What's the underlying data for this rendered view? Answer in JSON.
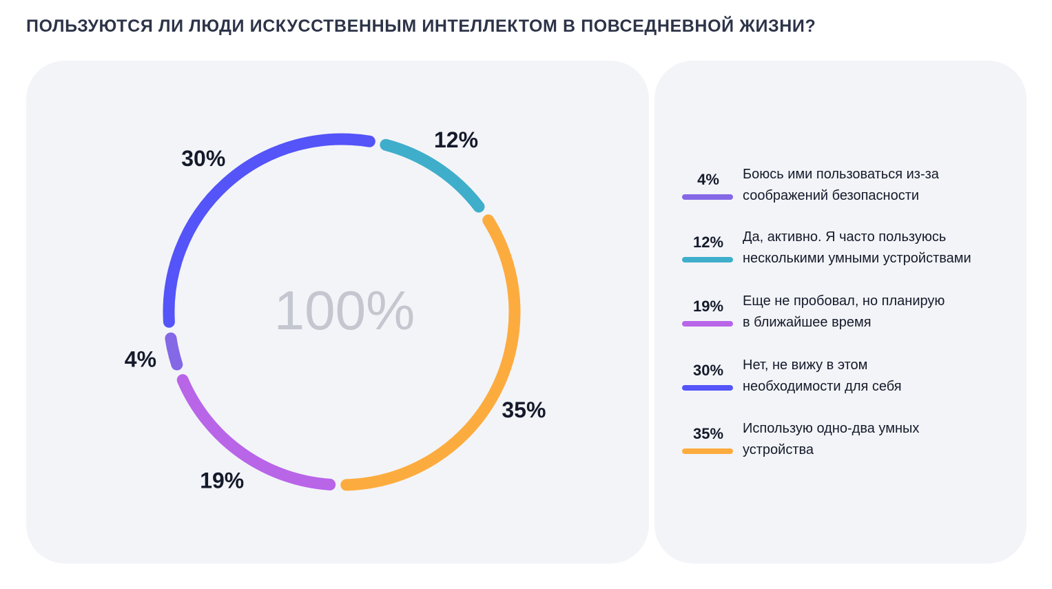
{
  "title": "ПОЛЬЗУЮТСЯ ЛИ ЛЮДИ ИСКУССТВЕННЫМ ИНТЕЛЛЕКТОМ В ПОВСЕДНЕВНОЙ ЖИЗНИ?",
  "chart_data": {
    "type": "pie",
    "variant": "donut",
    "center_label": "100%",
    "legend_position": "right",
    "slices": [
      {
        "label": "Да, активно. Я часто пользуюсь несколькими умными устройствами",
        "value": 12,
        "display": "12%",
        "color": "#3faecb"
      },
      {
        "label": "Использую одно-два умных устройства",
        "value": 35,
        "display": "35%",
        "color": "#fcac3e"
      },
      {
        "label": "Еще не пробовал, но планирую в ближайшее время",
        "value": 19,
        "display": "19%",
        "color": "#b865e8"
      },
      {
        "label": "Боюсь ими пользоваться из-за соображений безопасности",
        "value": 4,
        "display": "4%",
        "color": "#8468e6"
      },
      {
        "label": "Нет, не вижу в этом необходимости для себя",
        "value": 30,
        "display": "30%",
        "color": "#5454f9"
      }
    ]
  },
  "legend": [
    {
      "pct": "4%",
      "line1": "Боюсь ими пользоваться из-за",
      "line2": "соображений безопасности",
      "color": "#8468e6"
    },
    {
      "pct": "12%",
      "line1": "Да, активно. Я часто пользуюсь",
      "line2": "несколькими умными устройствами",
      "color": "#3faecb"
    },
    {
      "pct": "19%",
      "line1": "Еще не пробовал, но планирую",
      "line2": "в ближайшее время",
      "color": "#b865e8"
    },
    {
      "pct": "30%",
      "line1": "Нет, не вижу в этом",
      "line2": "необходимости для себя",
      "color": "#5454f9"
    },
    {
      "pct": "35%",
      "line1": "Использую одно-два умных",
      "line2": "устройства",
      "color": "#fcac3e"
    }
  ]
}
